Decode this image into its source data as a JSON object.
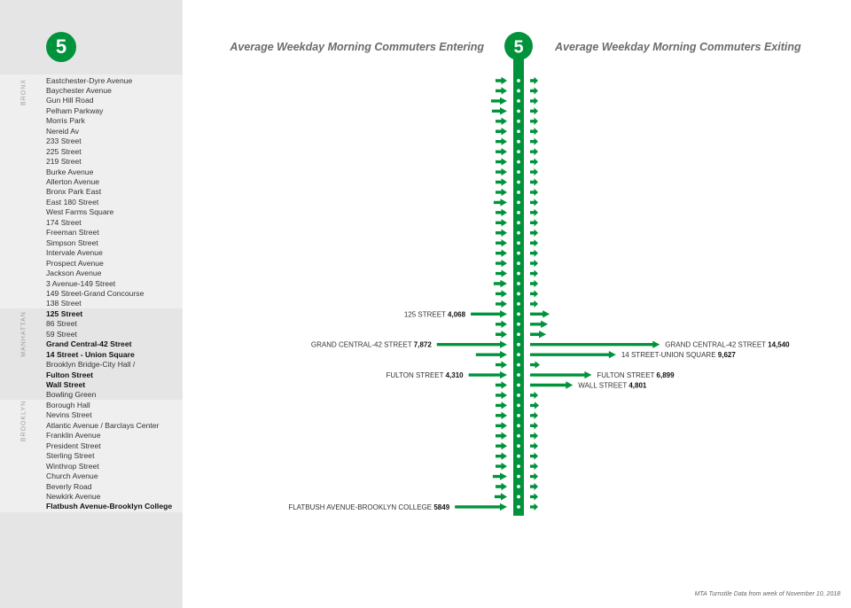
{
  "line": "5",
  "boroughs": [
    "BRONX",
    "MANHATTAN",
    "BROOKLYN"
  ],
  "titles": {
    "entering": "Average Weekday Morning Commuters Entering",
    "exiting": "Average Weekday Morning Commuters Exiting"
  },
  "footnote": "MTA Turnstile Data from week of November 10, 2018",
  "colors": {
    "line": "#00933c",
    "sidebar": "#e5e5e5"
  },
  "chart_data": {
    "type": "bar",
    "stations": [
      {
        "name": "Eastchester-Dyre Avenue",
        "entering": 1100,
        "exiting": 450
      },
      {
        "name": "Baychester Avenue",
        "entering": 900,
        "exiting": 400
      },
      {
        "name": "Gun Hill Road",
        "entering": 1800,
        "exiting": 650
      },
      {
        "name": "Pelham Parkway",
        "entering": 1700,
        "exiting": 550
      },
      {
        "name": "Morris Park",
        "entering": 800,
        "exiting": 350
      },
      {
        "name": "Nereid Av",
        "entering": 850,
        "exiting": 300
      },
      {
        "name": "233 Street",
        "entering": 1000,
        "exiting": 400
      },
      {
        "name": "225 Street",
        "entering": 950,
        "exiting": 400
      },
      {
        "name": "219 Street",
        "entering": 900,
        "exiting": 350
      },
      {
        "name": "Burke Avenue",
        "entering": 1000,
        "exiting": 400
      },
      {
        "name": "Allerton Avenue",
        "entering": 1100,
        "exiting": 450
      },
      {
        "name": "Bronx Park East",
        "entering": 700,
        "exiting": 300
      },
      {
        "name": "East 180 Street",
        "entering": 1500,
        "exiting": 550
      },
      {
        "name": "West Farms Square",
        "entering": 1050,
        "exiting": 450
      },
      {
        "name": "174 Street",
        "entering": 1050,
        "exiting": 400
      },
      {
        "name": "Freeman Street",
        "entering": 1000,
        "exiting": 350
      },
      {
        "name": "Simpson Street",
        "entering": 1200,
        "exiting": 450
      },
      {
        "name": "Intervale Avenue",
        "entering": 900,
        "exiting": 350
      },
      {
        "name": "Prospect Avenue",
        "entering": 1100,
        "exiting": 400
      },
      {
        "name": "Jackson Avenue",
        "entering": 1100,
        "exiting": 400
      },
      {
        "name": "3 Avenue-149 Street",
        "entering": 1500,
        "exiting": 500
      },
      {
        "name": "149 Street-Grand Concourse",
        "entering": 800,
        "exiting": 350
      },
      {
        "name": "138 Street",
        "entering": 600,
        "exiting": 250
      },
      {
        "name": "125 Street",
        "entering": 4068,
        "exiting": 2200,
        "entering_label": "125 STREET",
        "entering_value": "4,068"
      },
      {
        "name": "86 Street",
        "entering": 500,
        "exiting": 2000
      },
      {
        "name": "59 Street",
        "entering": 500,
        "exiting": 1800
      },
      {
        "name": "Grand Central-42 Street",
        "entering": 7872,
        "exiting": 14540,
        "entering_label": "GRAND CENTRAL-42 STREET",
        "entering_value": "7,872",
        "exiting_label": "GRAND CENTRAL-42 STREET",
        "exiting_value": "14,540"
      },
      {
        "name": "14 Street - Union Square",
        "entering": 3500,
        "exiting": 9627,
        "exiting_label": "14 STREET-UNION SQUARE",
        "exiting_value": "9,627"
      },
      {
        "name": "Brooklyn Bridge-City Hall /",
        "entering": 600,
        "exiting": 1100
      },
      {
        "name": "Fulton Street",
        "entering": 4310,
        "exiting": 6899,
        "entering_label": "FULTON STREET",
        "entering_value": "4,310",
        "exiting_label": "FULTON STREET",
        "exiting_value": "6,899"
      },
      {
        "name": "Wall Street",
        "entering": 1300,
        "exiting": 4801,
        "exiting_label": "WALL STREET",
        "exiting_value": "4,801"
      },
      {
        "name": "Bowling Green",
        "entering": 700,
        "exiting": 900
      },
      {
        "name": "Borough Hall",
        "entering": 900,
        "exiting": 1000
      },
      {
        "name": "Nevins Street",
        "entering": 400,
        "exiting": 350
      },
      {
        "name": "Atlantic Avenue / Barclays Center",
        "entering": 1200,
        "exiting": 800
      },
      {
        "name": "Franklin Avenue",
        "entering": 1100,
        "exiting": 500
      },
      {
        "name": "President Street",
        "entering": 600,
        "exiting": 300
      },
      {
        "name": "Sterling Street",
        "entering": 500,
        "exiting": 250
      },
      {
        "name": "Winthrop Street",
        "entering": 900,
        "exiting": 250
      },
      {
        "name": "Church Avenue",
        "entering": 1600,
        "exiting": 450
      },
      {
        "name": "Beverly Road",
        "entering": 900,
        "exiting": 300
      },
      {
        "name": "Newkirk Avenue",
        "entering": 1400,
        "exiting": 400
      },
      {
        "name": "Flatbush Avenue-Brooklyn College",
        "entering": 5849,
        "exiting": 550,
        "entering_label": "FLATBUSH AVENUE-BROOKLYN COLLEGE",
        "entering_value": "5849"
      }
    ],
    "bold_stations": [
      "125 Street",
      "Grand Central-42 Street",
      "14 Street - Union Square",
      "Fulton Street",
      "Wall Street",
      "Flatbush Avenue-Brooklyn College"
    ]
  }
}
